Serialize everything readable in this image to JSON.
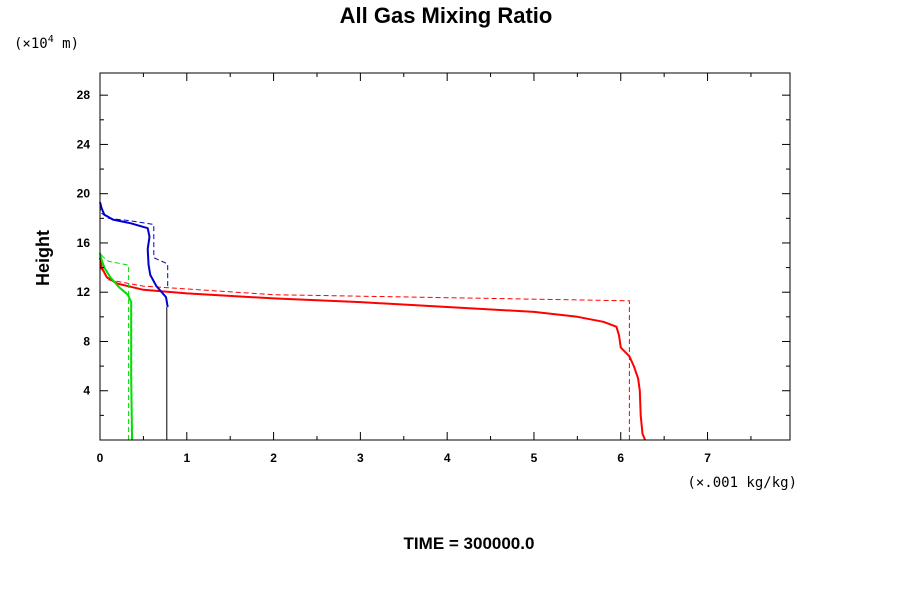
{
  "chart_data": {
    "type": "line",
    "title": "All Gas Mixing Ratio",
    "ylabel": "Height",
    "y_unit_prefix": "(×10",
    "y_unit_exp": "4",
    "y_unit_suffix": " m)",
    "x_unit": "(×.001 kg/kg)",
    "footer": "TIME = 300000.0",
    "xlim": [
      0,
      7.95
    ],
    "ylim": [
      0,
      29.8
    ],
    "x_ticks": [
      0,
      1,
      2,
      3,
      4,
      5,
      6,
      7
    ],
    "y_ticks": [
      4,
      8,
      12,
      16,
      20,
      24,
      28
    ],
    "grid": false,
    "legend": "none",
    "series": [
      {
        "color": "#ff0000",
        "dash": false,
        "width": 2,
        "points": [
          [
            6.28,
            0
          ],
          [
            6.25,
            0.5
          ],
          [
            6.23,
            2
          ],
          [
            6.22,
            4
          ],
          [
            6.2,
            5
          ],
          [
            6.15,
            6
          ],
          [
            6.1,
            6.8
          ],
          [
            6.0,
            7.5
          ],
          [
            5.98,
            8.5
          ],
          [
            5.95,
            9.2
          ],
          [
            5.8,
            9.6
          ],
          [
            5.5,
            10.0
          ],
          [
            5.0,
            10.4
          ],
          [
            4.0,
            10.8
          ],
          [
            3.0,
            11.2
          ],
          [
            2.0,
            11.5
          ],
          [
            1.0,
            11.9
          ],
          [
            0.5,
            12.2
          ],
          [
            0.2,
            12.7
          ],
          [
            0.08,
            13.2
          ],
          [
            0.02,
            14.0
          ],
          [
            0,
            14.8
          ]
        ]
      },
      {
        "color": "#ff0000",
        "dash": true,
        "width": 1,
        "points": [
          [
            6.1,
            0
          ],
          [
            6.1,
            11.3
          ],
          [
            2.0,
            11.8
          ],
          [
            0.5,
            12.5
          ],
          [
            0.1,
            13.0
          ],
          [
            0.05,
            13.6
          ],
          [
            0,
            14.0
          ]
        ]
      },
      {
        "color": "#0000cc",
        "dash": false,
        "width": 2,
        "points": [
          [
            0.78,
            10.8
          ],
          [
            0.76,
            11.6
          ],
          [
            0.65,
            12.5
          ],
          [
            0.58,
            13.4
          ],
          [
            0.56,
            14.2
          ],
          [
            0.55,
            15.5
          ],
          [
            0.57,
            16.5
          ],
          [
            0.55,
            17.2
          ],
          [
            0.35,
            17.6
          ],
          [
            0.15,
            17.9
          ],
          [
            0.05,
            18.3
          ],
          [
            0.02,
            18.8
          ],
          [
            0,
            19.3
          ]
        ]
      },
      {
        "color": "#0000cc",
        "dash": true,
        "width": 1,
        "points": [
          [
            0.78,
            12.5
          ],
          [
            0.78,
            14.3
          ],
          [
            0.62,
            14.8
          ],
          [
            0.62,
            17.5
          ],
          [
            0.35,
            17.8
          ],
          [
            0.1,
            18.0
          ],
          [
            0.02,
            18.4
          ],
          [
            0,
            18.8
          ]
        ]
      },
      {
        "color": "#000000",
        "dash": false,
        "width": 1,
        "points": [
          [
            0.77,
            0
          ],
          [
            0.77,
            10.8
          ]
        ]
      },
      {
        "color": "#00dd00",
        "dash": false,
        "width": 2,
        "points": [
          [
            0.37,
            0
          ],
          [
            0.36,
            5
          ],
          [
            0.36,
            11.2
          ],
          [
            0.32,
            11.8
          ],
          [
            0.22,
            12.4
          ],
          [
            0.12,
            13.2
          ],
          [
            0.05,
            14.0
          ],
          [
            0.01,
            14.8
          ],
          [
            0,
            15.2
          ]
        ]
      },
      {
        "color": "#00dd00",
        "dash": true,
        "width": 1,
        "points": [
          [
            0.33,
            0
          ],
          [
            0.33,
            14.2
          ],
          [
            0.1,
            14.5
          ],
          [
            0.03,
            14.9
          ],
          [
            0,
            15.2
          ]
        ]
      },
      {
        "color": "#00dd00",
        "dash": false,
        "width": 1,
        "points": [
          [
            0,
            15.2
          ],
          [
            0,
            29.8
          ]
        ]
      }
    ]
  }
}
